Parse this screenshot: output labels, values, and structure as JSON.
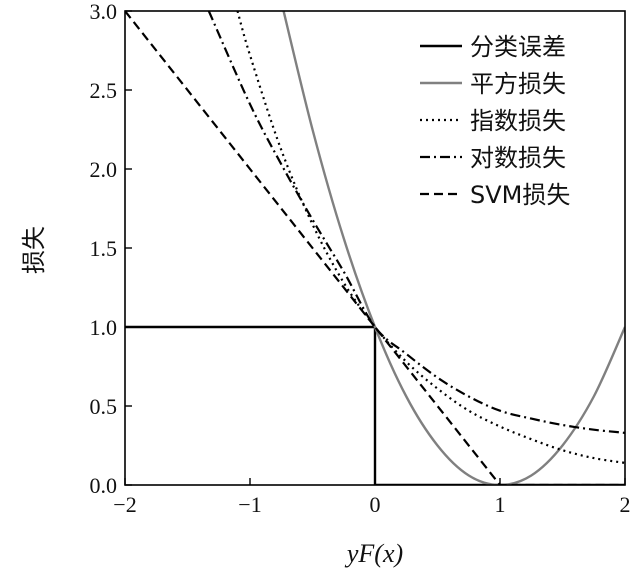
{
  "chart_data": {
    "type": "line",
    "xlabel": "yF(x)",
    "ylabel": "损失",
    "xlim": [
      -2,
      2
    ],
    "ylim": [
      0,
      3
    ],
    "xticks": [
      -2,
      -1,
      0,
      1,
      2
    ],
    "yticks": [
      0.0,
      0.5,
      1.0,
      1.5,
      2.0,
      2.5,
      3.0
    ],
    "xtick_labels": [
      "−2",
      "−1",
      "0",
      "1",
      "2"
    ],
    "ytick_labels": [
      "0.0",
      "0.5",
      "1.0",
      "1.5",
      "2.0",
      "2.5",
      "3.0"
    ],
    "grid": false,
    "legend_position": "top-right",
    "series": [
      {
        "name": "分类误差",
        "color": "#000000",
        "style": "solid",
        "x": [
          -2,
          0,
          0,
          0,
          2
        ],
        "y": [
          1,
          1,
          1,
          0,
          0
        ]
      },
      {
        "name": "平方损失",
        "color": "#808080",
        "style": "solid",
        "x": [
          -0.75,
          -0.5,
          -0.25,
          0,
          0.25,
          0.5,
          0.75,
          1,
          1.25,
          1.5,
          1.75,
          2
        ],
        "y": [
          3.06,
          2.25,
          1.56,
          1,
          0.56,
          0.25,
          0.06,
          0,
          0.06,
          0.25,
          0.56,
          1
        ]
      },
      {
        "name": "指数损失",
        "color": "#000000",
        "style": "dotted",
        "x": [
          -1.1,
          -1,
          -0.75,
          -0.5,
          -0.25,
          0,
          0.25,
          0.5,
          0.75,
          1,
          1.25,
          1.5,
          1.75,
          2
        ],
        "y": [
          3.0,
          2.72,
          2.12,
          1.65,
          1.28,
          1,
          0.78,
          0.61,
          0.47,
          0.37,
          0.29,
          0.22,
          0.17,
          0.14
        ]
      },
      {
        "name": "对数损失",
        "color": "#000000",
        "style": "dashdot",
        "x": [
          -1.33,
          -1,
          -0.75,
          -0.5,
          -0.25,
          0,
          0.25,
          0.5,
          0.75,
          1,
          1.25,
          1.5,
          1.75,
          2
        ],
        "y": [
          3.0,
          2.41,
          2.03,
          1.68,
          1.35,
          1,
          0.83,
          0.68,
          0.56,
          0.47,
          0.42,
          0.38,
          0.35,
          0.33
        ]
      },
      {
        "name": "SVM损失",
        "color": "#000000",
        "style": "dashed",
        "x": [
          -2,
          -1,
          0,
          1,
          2
        ],
        "y": [
          3,
          2,
          1,
          0,
          0
        ]
      }
    ]
  }
}
